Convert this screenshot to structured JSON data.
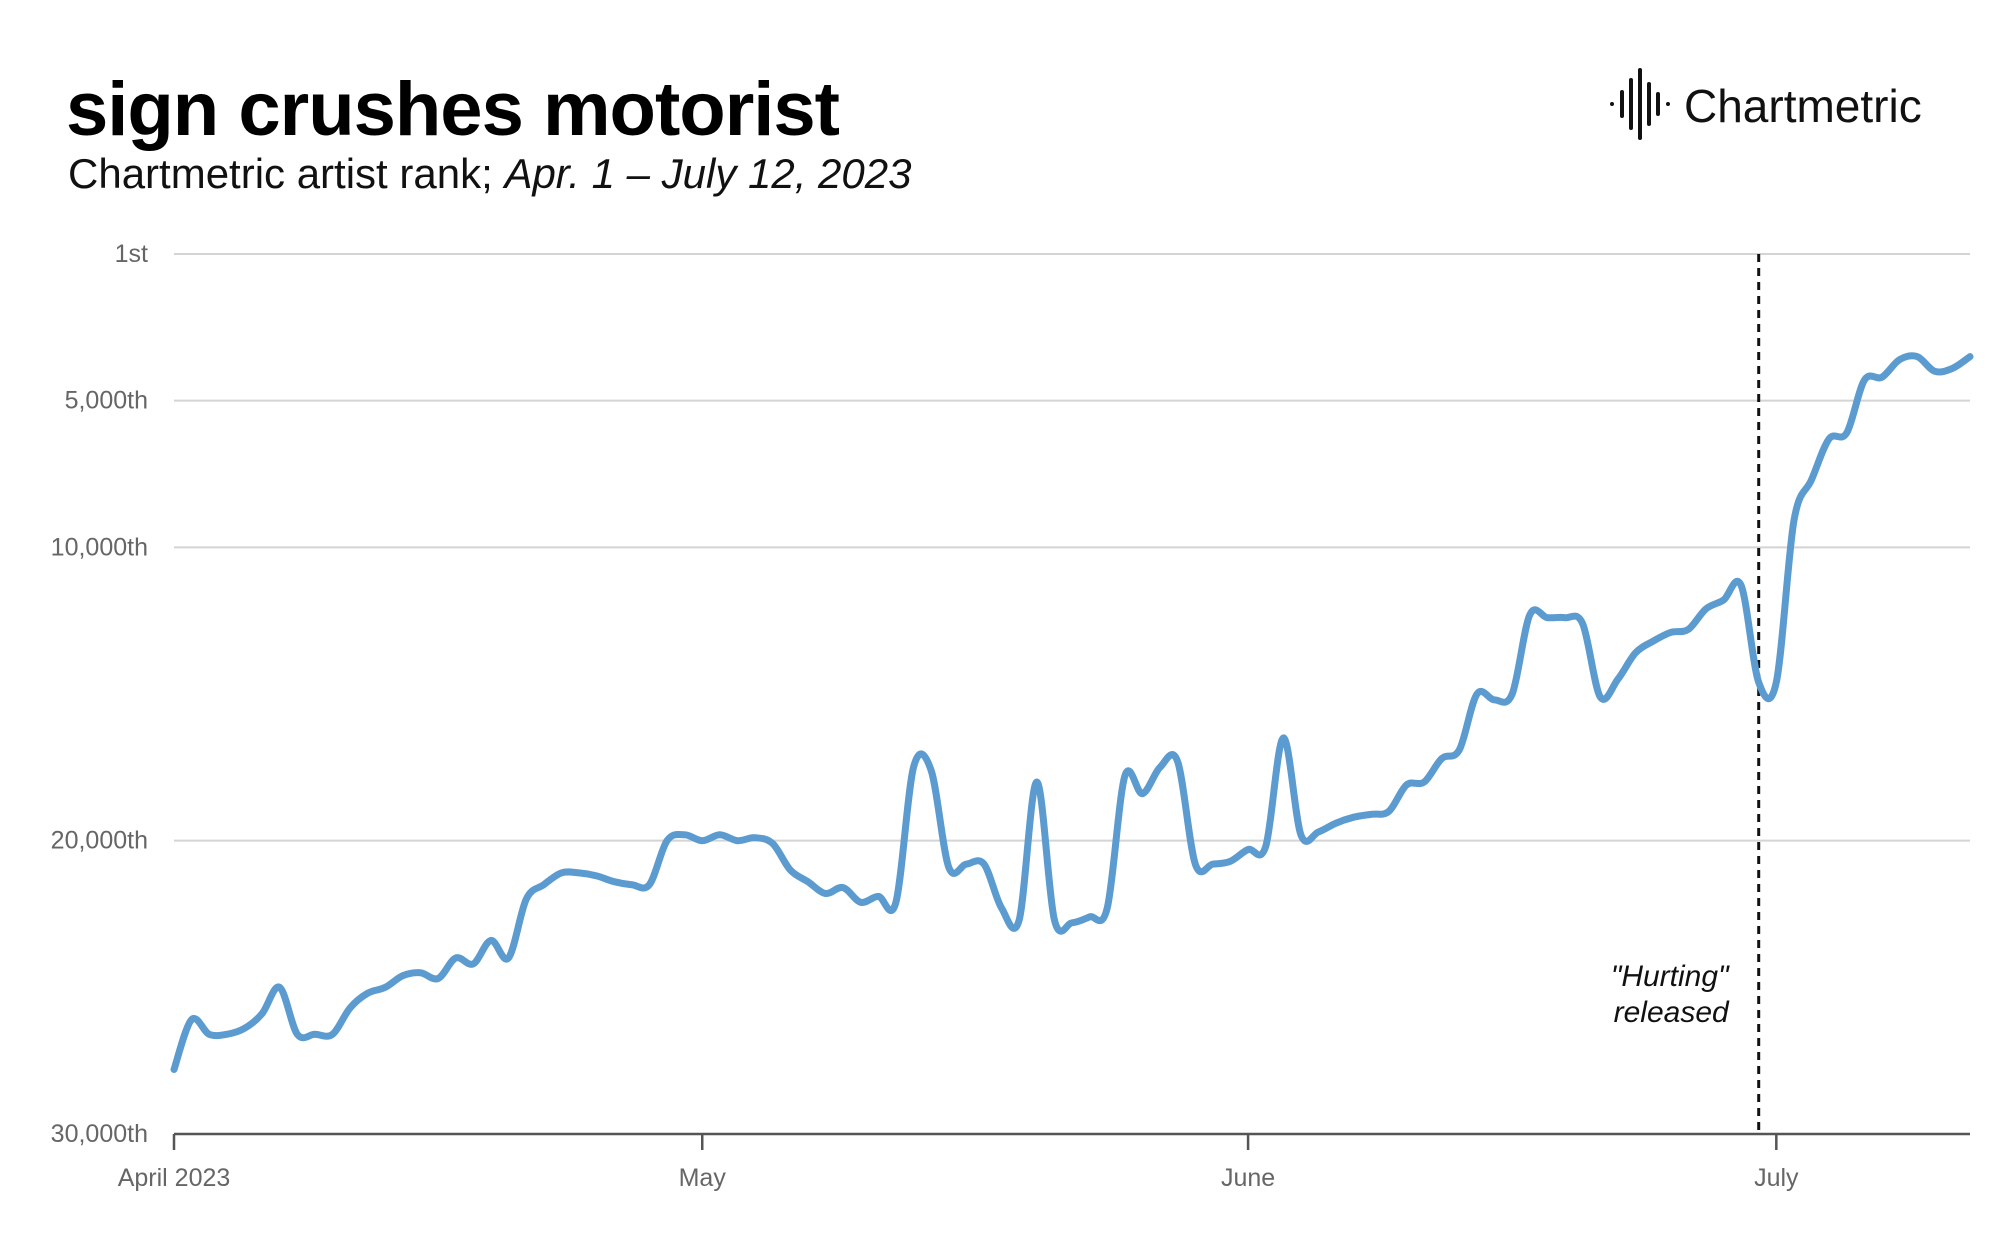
{
  "header": {
    "title": "sign crushes motorist",
    "subtitle_plain": "Chartmetric artist rank; ",
    "subtitle_italic": "Apr. 1 – July 12, 2023"
  },
  "brand": {
    "name": "Chartmetric",
    "icon": "chartmetric-waveform-icon"
  },
  "colors": {
    "line": "#5b9bcf",
    "grid": "#d4d4d4",
    "axis": "#555555",
    "tick_text": "#666666"
  },
  "chart_data": {
    "type": "line",
    "title": "sign crushes motorist",
    "subtitle": "Chartmetric artist rank; Apr. 1 – July 12, 2023",
    "x_type": "date",
    "y_reversed": true,
    "y_ticks": [
      {
        "value": 1,
        "label": "1st"
      },
      {
        "value": 5000,
        "label": "5,000th"
      },
      {
        "value": 10000,
        "label": "10,000th"
      },
      {
        "value": 20000,
        "label": "20,000th"
      },
      {
        "value": 30000,
        "label": "30,000th"
      }
    ],
    "ylim": [
      30000,
      1
    ],
    "xlim": [
      "2023-04-01",
      "2023-07-12"
    ],
    "x_ticks": [
      {
        "date": "2023-04-01",
        "label": "April 2023"
      },
      {
        "date": "2023-05-01",
        "label": "May"
      },
      {
        "date": "2023-06-01",
        "label": "June"
      },
      {
        "date": "2023-07-01",
        "label": "July"
      }
    ],
    "grid": "horizontal",
    "series": [
      {
        "values": [
          [
            "2023-04-01",
            27800
          ],
          [
            "2023-04-02",
            26100
          ],
          [
            "2023-04-03",
            26600
          ],
          [
            "2023-04-04",
            26600
          ],
          [
            "2023-04-05",
            26400
          ],
          [
            "2023-04-06",
            25900
          ],
          [
            "2023-04-07",
            25000
          ],
          [
            "2023-04-08",
            26600
          ],
          [
            "2023-04-09",
            26600
          ],
          [
            "2023-04-10",
            26600
          ],
          [
            "2023-04-11",
            25700
          ],
          [
            "2023-04-12",
            25200
          ],
          [
            "2023-04-13",
            25000
          ],
          [
            "2023-04-14",
            24600
          ],
          [
            "2023-04-15",
            24500
          ],
          [
            "2023-04-16",
            24700
          ],
          [
            "2023-04-17",
            24000
          ],
          [
            "2023-04-18",
            24200
          ],
          [
            "2023-04-19",
            23400
          ],
          [
            "2023-04-20",
            24000
          ],
          [
            "2023-04-21",
            22000
          ],
          [
            "2023-04-22",
            21500
          ],
          [
            "2023-04-23",
            21100
          ],
          [
            "2023-04-24",
            21100
          ],
          [
            "2023-04-25",
            21200
          ],
          [
            "2023-04-26",
            21400
          ],
          [
            "2023-04-27",
            21500
          ],
          [
            "2023-04-28",
            21500
          ],
          [
            "2023-04-29",
            20000
          ],
          [
            "2023-04-30",
            19800
          ],
          [
            "2023-05-01",
            20000
          ],
          [
            "2023-05-02",
            19800
          ],
          [
            "2023-05-03",
            20000
          ],
          [
            "2023-05-04",
            19900
          ],
          [
            "2023-05-05",
            20100
          ],
          [
            "2023-05-06",
            21000
          ],
          [
            "2023-05-07",
            21400
          ],
          [
            "2023-05-08",
            21800
          ],
          [
            "2023-05-09",
            21600
          ],
          [
            "2023-05-10",
            22100
          ],
          [
            "2023-05-11",
            21900
          ],
          [
            "2023-05-12",
            22100
          ],
          [
            "2023-05-13",
            17500
          ],
          [
            "2023-05-14",
            17600
          ],
          [
            "2023-05-15",
            20900
          ],
          [
            "2023-05-16",
            20800
          ],
          [
            "2023-05-17",
            20800
          ],
          [
            "2023-05-18",
            22300
          ],
          [
            "2023-05-19",
            22700
          ],
          [
            "2023-05-20",
            18000
          ],
          [
            "2023-05-21",
            22700
          ],
          [
            "2023-05-22",
            22800
          ],
          [
            "2023-05-23",
            22600
          ],
          [
            "2023-05-24",
            22300
          ],
          [
            "2023-05-25",
            17800
          ],
          [
            "2023-05-26",
            18400
          ],
          [
            "2023-05-27",
            17500
          ],
          [
            "2023-05-28",
            17300
          ],
          [
            "2023-05-29",
            20800
          ],
          [
            "2023-05-30",
            20800
          ],
          [
            "2023-05-31",
            20700
          ],
          [
            "2023-06-01",
            20300
          ],
          [
            "2023-06-02",
            20200
          ],
          [
            "2023-06-03",
            16500
          ],
          [
            "2023-06-04",
            19800
          ],
          [
            "2023-06-05",
            19700
          ],
          [
            "2023-06-06",
            19400
          ],
          [
            "2023-06-07",
            19200
          ],
          [
            "2023-06-08",
            19100
          ],
          [
            "2023-06-09",
            19000
          ],
          [
            "2023-06-10",
            18100
          ],
          [
            "2023-06-11",
            18000
          ],
          [
            "2023-06-12",
            17200
          ],
          [
            "2023-06-13",
            16900
          ],
          [
            "2023-06-14",
            15000
          ],
          [
            "2023-06-15",
            15200
          ],
          [
            "2023-06-16",
            15000
          ],
          [
            "2023-06-17",
            12300
          ],
          [
            "2023-06-18",
            12400
          ],
          [
            "2023-06-19",
            12400
          ],
          [
            "2023-06-20",
            12600
          ],
          [
            "2023-06-21",
            15100
          ],
          [
            "2023-06-22",
            14500
          ],
          [
            "2023-06-23",
            13600
          ],
          [
            "2023-06-24",
            13200
          ],
          [
            "2023-06-25",
            12900
          ],
          [
            "2023-06-26",
            12800
          ],
          [
            "2023-06-27",
            12100
          ],
          [
            "2023-06-28",
            11800
          ],
          [
            "2023-06-29",
            11300
          ],
          [
            "2023-06-30",
            14600
          ],
          [
            "2023-07-01",
            14600
          ],
          [
            "2023-07-02",
            9100
          ],
          [
            "2023-07-03",
            7700
          ],
          [
            "2023-07-04",
            6300
          ],
          [
            "2023-07-05",
            6100
          ],
          [
            "2023-07-06",
            4300
          ],
          [
            "2023-07-07",
            4200
          ],
          [
            "2023-07-08",
            3600
          ],
          [
            "2023-07-09",
            3500
          ],
          [
            "2023-07-10",
            4000
          ],
          [
            "2023-07-11",
            3900
          ],
          [
            "2023-07-12",
            3500
          ]
        ]
      }
    ],
    "annotations": [
      {
        "date": "2023-06-30",
        "line1": "\"Hurting\"",
        "line2": "released",
        "style": "dashed-vertical"
      }
    ]
  }
}
